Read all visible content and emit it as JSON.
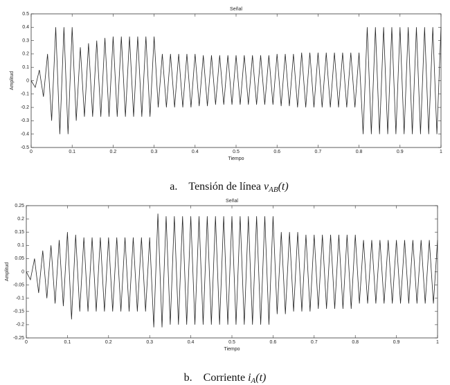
{
  "chart_data": [
    {
      "type": "line",
      "title": "Señal",
      "x_label": "Tiempo",
      "y_label": "Amplitud",
      "caption": {
        "label": "a.",
        "text": "Tensión de línea",
        "symbol": "v",
        "subscript": "AB",
        "argument": "(t)"
      },
      "xlim": [
        0,
        1
      ],
      "xticks": [
        0,
        0.1,
        0.2,
        0.3,
        0.4,
        0.5,
        0.6,
        0.7,
        0.8,
        0.9,
        1
      ],
      "ylim": [
        -0.5,
        0.5
      ],
      "yticks": [
        -0.5,
        -0.4,
        -0.3,
        -0.2,
        -0.1,
        0,
        0.1,
        0.2,
        0.3,
        0.4,
        0.5
      ],
      "grid": false,
      "x": [
        0,
        0.01,
        0.02,
        0.03,
        0.04,
        0.05,
        0.06,
        0.07,
        0.08,
        0.09,
        0.1,
        0.11,
        0.12,
        0.13,
        0.14,
        0.15,
        0.16,
        0.17,
        0.18,
        0.19,
        0.2,
        0.21,
        0.22,
        0.23,
        0.24,
        0.25,
        0.26,
        0.27,
        0.28,
        0.29,
        0.3,
        0.31,
        0.32,
        0.33,
        0.34,
        0.35,
        0.36,
        0.37,
        0.38,
        0.39,
        0.4,
        0.41,
        0.42,
        0.43,
        0.44,
        0.45,
        0.46,
        0.47,
        0.48,
        0.49,
        0.5,
        0.51,
        0.52,
        0.53,
        0.54,
        0.55,
        0.56,
        0.57,
        0.58,
        0.59,
        0.6,
        0.61,
        0.62,
        0.63,
        0.64,
        0.65,
        0.66,
        0.67,
        0.68,
        0.69,
        0.7,
        0.71,
        0.72,
        0.73,
        0.74,
        0.75,
        0.76,
        0.77,
        0.78,
        0.79,
        0.8,
        0.81,
        0.82,
        0.83,
        0.84,
        0.85,
        0.86,
        0.87,
        0.88,
        0.89,
        0.9,
        0.91,
        0.92,
        0.93,
        0.94,
        0.95,
        0.96,
        0.97,
        0.98,
        0.99,
        1
      ],
      "series": [
        {
          "color": "#222222",
          "values": [
            0,
            -0.05,
            0.08,
            -0.12,
            0.2,
            -0.3,
            0.4,
            -0.4,
            0.4,
            -0.4,
            0.4,
            -0.3,
            0.25,
            -0.27,
            0.28,
            -0.27,
            0.3,
            -0.27,
            0.32,
            -0.27,
            0.33,
            -0.27,
            0.33,
            -0.27,
            0.33,
            -0.27,
            0.33,
            -0.27,
            0.33,
            -0.27,
            0.33,
            -0.2,
            0.2,
            -0.2,
            0.2,
            -0.2,
            0.2,
            -0.2,
            0.2,
            -0.2,
            0.2,
            -0.19,
            0.19,
            -0.19,
            0.19,
            -0.18,
            0.19,
            -0.18,
            0.19,
            -0.18,
            0.19,
            -0.18,
            0.19,
            -0.18,
            0.19,
            -0.18,
            0.19,
            -0.18,
            0.19,
            -0.18,
            0.2,
            -0.19,
            0.2,
            -0.19,
            0.2,
            -0.2,
            0.21,
            -0.2,
            0.21,
            -0.2,
            0.21,
            -0.2,
            0.21,
            -0.2,
            0.21,
            -0.2,
            0.21,
            -0.2,
            0.21,
            -0.2,
            0.21,
            -0.4,
            0.4,
            -0.4,
            0.4,
            -0.4,
            0.4,
            -0.4,
            0.4,
            -0.4,
            0.4,
            -0.4,
            0.4,
            -0.4,
            0.4,
            -0.4,
            0.4,
            -0.4,
            0.4,
            -0.4,
            0.4
          ]
        }
      ]
    },
    {
      "type": "line",
      "title": "Señal",
      "x_label": "Tiempo",
      "y_label": "Amplitud",
      "caption": {
        "label": "b.",
        "text": "Corriente",
        "symbol": "i",
        "subscript": "A",
        "argument": "(t)"
      },
      "xlim": [
        0,
        1
      ],
      "xticks": [
        0,
        0.1,
        0.2,
        0.3,
        0.4,
        0.5,
        0.6,
        0.7,
        0.8,
        0.9,
        1
      ],
      "ylim": [
        -0.25,
        0.25
      ],
      "yticks": [
        -0.25,
        -0.2,
        -0.15,
        -0.1,
        -0.05,
        0,
        0.05,
        0.1,
        0.15,
        0.2,
        0.25
      ],
      "grid": false,
      "x": [
        0,
        0.01,
        0.02,
        0.03,
        0.04,
        0.05,
        0.06,
        0.07,
        0.08,
        0.09,
        0.1,
        0.11,
        0.12,
        0.13,
        0.14,
        0.15,
        0.16,
        0.17,
        0.18,
        0.19,
        0.2,
        0.21,
        0.22,
        0.23,
        0.24,
        0.25,
        0.26,
        0.27,
        0.28,
        0.29,
        0.3,
        0.31,
        0.32,
        0.33,
        0.34,
        0.35,
        0.36,
        0.37,
        0.38,
        0.39,
        0.4,
        0.41,
        0.42,
        0.43,
        0.44,
        0.45,
        0.46,
        0.47,
        0.48,
        0.49,
        0.5,
        0.51,
        0.52,
        0.53,
        0.54,
        0.55,
        0.56,
        0.57,
        0.58,
        0.59,
        0.6,
        0.61,
        0.62,
        0.63,
        0.64,
        0.65,
        0.66,
        0.67,
        0.68,
        0.69,
        0.7,
        0.71,
        0.72,
        0.73,
        0.74,
        0.75,
        0.76,
        0.77,
        0.78,
        0.79,
        0.8,
        0.81,
        0.82,
        0.83,
        0.84,
        0.85,
        0.86,
        0.87,
        0.88,
        0.89,
        0.9,
        0.91,
        0.92,
        0.93,
        0.94,
        0.95,
        0.96,
        0.97,
        0.98,
        0.99,
        1
      ],
      "series": [
        {
          "color": "#222222",
          "values": [
            0,
            -0.03,
            0.05,
            -0.08,
            0.08,
            -0.1,
            0.1,
            -0.12,
            0.12,
            -0.13,
            0.15,
            -0.18,
            0.14,
            -0.15,
            0.13,
            -0.15,
            0.13,
            -0.15,
            0.13,
            -0.15,
            0.13,
            -0.15,
            0.13,
            -0.15,
            0.13,
            -0.15,
            0.13,
            -0.15,
            0.13,
            -0.15,
            0.13,
            -0.21,
            0.22,
            -0.21,
            0.21,
            -0.2,
            0.21,
            -0.2,
            0.21,
            -0.2,
            0.21,
            -0.2,
            0.21,
            -0.2,
            0.21,
            -0.2,
            0.21,
            -0.2,
            0.21,
            -0.2,
            0.21,
            -0.2,
            0.21,
            -0.2,
            0.21,
            -0.2,
            0.21,
            -0.2,
            0.21,
            -0.2,
            0.21,
            -0.16,
            0.15,
            -0.16,
            0.15,
            -0.15,
            0.15,
            -0.15,
            0.14,
            -0.15,
            0.14,
            -0.14,
            0.14,
            -0.14,
            0.14,
            -0.14,
            0.14,
            -0.14,
            0.14,
            -0.14,
            0.14,
            -0.12,
            0.12,
            -0.12,
            0.12,
            -0.12,
            0.12,
            -0.12,
            0.12,
            -0.12,
            0.12,
            -0.12,
            0.12,
            -0.12,
            0.12,
            -0.12,
            0.12,
            -0.12,
            0.12,
            -0.12,
            0.12
          ]
        }
      ]
    }
  ]
}
